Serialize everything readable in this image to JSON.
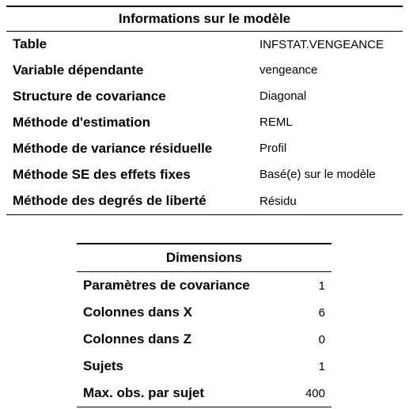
{
  "model_info": {
    "title": "Informations sur le modèle",
    "rows": [
      {
        "label": "Table",
        "value": "INFSTAT.VENGEANCE"
      },
      {
        "label": "Variable dépendante",
        "value": "vengeance"
      },
      {
        "label": "Structure de covariance",
        "value": "Diagonal"
      },
      {
        "label": "Méthode d'estimation",
        "value": "REML"
      },
      {
        "label": "Méthode de variance résiduelle",
        "value": "Profil"
      },
      {
        "label": "Méthode SE des effets fixes",
        "value": "Basé(e) sur le modèle"
      },
      {
        "label": "Méthode des degrés de liberté",
        "value": "Résidu"
      }
    ]
  },
  "dimensions": {
    "title": "Dimensions",
    "rows": [
      {
        "label": "Paramètres de covariance",
        "value": "1"
      },
      {
        "label": "Colonnes dans X",
        "value": "6"
      },
      {
        "label": "Colonnes dans Z",
        "value": "0"
      },
      {
        "label": "Sujets",
        "value": "1"
      },
      {
        "label": "Max. obs. par sujet",
        "value": "400"
      }
    ]
  }
}
